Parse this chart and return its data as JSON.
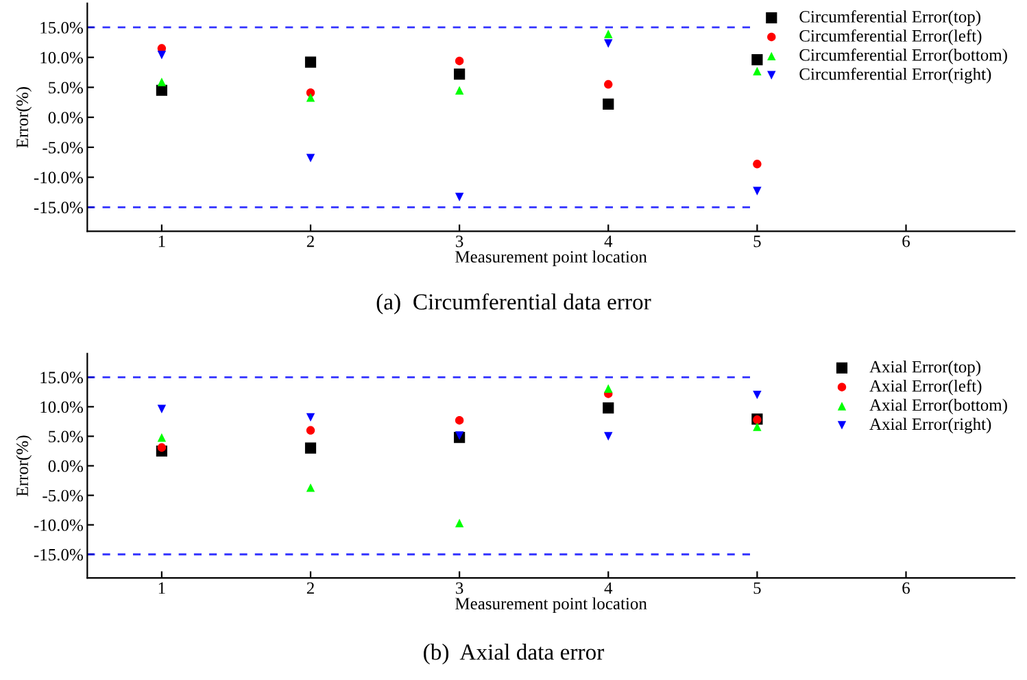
{
  "chart_data": [
    {
      "type": "scatter",
      "xlabel": "Measurement point location",
      "ylabel": "Error(%)",
      "x": [
        1,
        2,
        3,
        4,
        5
      ],
      "series": [
        {
          "name": "Circumferential Error(top)",
          "color": "#000000",
          "marker": "square",
          "values": [
            4.5,
            9.2,
            7.2,
            2.2,
            9.6
          ]
        },
        {
          "name": "Circumferential Error(left)",
          "color": "#ff0000",
          "marker": "circle",
          "values": [
            11.5,
            4.1,
            9.4,
            5.5,
            -7.8
          ]
        },
        {
          "name": "Circumferential Error(bottom)",
          "color": "#00ff00",
          "marker": "triangle",
          "values": [
            5.9,
            3.3,
            4.5,
            13.9,
            7.7
          ]
        },
        {
          "name": "Circumferential Error(right)",
          "color": "#0000ff",
          "marker": "triangle_down",
          "values": [
            10.4,
            -6.8,
            -13.3,
            12.3,
            -12.3
          ]
        }
      ],
      "xlim": [
        0.5,
        6.73
      ],
      "xticks": [
        1,
        2,
        3,
        4,
        5,
        6
      ],
      "ylim": [
        -19,
        19
      ],
      "yticks": [
        {
          "value": -15,
          "label": "-15.0%"
        },
        {
          "value": -10,
          "label": "-10.0%"
        },
        {
          "value": -5,
          "label": "-5.0%"
        },
        {
          "value": 0,
          "label": "0.0%"
        },
        {
          "value": 5,
          "label": "5.0%"
        },
        {
          "value": 10,
          "label": "10.0%"
        },
        {
          "value": 15,
          "label": "15.0%"
        }
      ],
      "ref_lines": [
        {
          "axis": "y",
          "value": 15,
          "color": "#0000ff",
          "line_style": "dashed"
        },
        {
          "axis": "y",
          "value": -15,
          "color": "#0000ff",
          "line_style": "dashed"
        }
      ],
      "annotations": [
        "(a)  Circumferential data error"
      ],
      "legend": "top right",
      "grid": false
    },
    {
      "type": "scatter",
      "xlabel": "Measurement point location",
      "ylabel": "Error(%)",
      "x": [
        1,
        2,
        3,
        4,
        5
      ],
      "series": [
        {
          "name": "Axial Error(top)",
          "color": "#000000",
          "marker": "square",
          "values": [
            2.5,
            3.0,
            4.8,
            9.8,
            7.9
          ]
        },
        {
          "name": "Axial Error(left)",
          "color": "#ff0000",
          "marker": "circle",
          "values": [
            3.1,
            6.0,
            7.7,
            12.2,
            7.8
          ]
        },
        {
          "name": "Axial Error(bottom)",
          "color": "#00ff00",
          "marker": "triangle",
          "values": [
            4.8,
            -3.7,
            -9.7,
            13.1,
            6.6
          ]
        },
        {
          "name": "Axial Error(right)",
          "color": "#0000ff",
          "marker": "triangle_down",
          "values": [
            9.6,
            8.2,
            5.1,
            5.0,
            12.0
          ]
        }
      ],
      "xlim": [
        0.5,
        6.73
      ],
      "xticks": [
        1,
        2,
        3,
        4,
        5,
        6
      ],
      "ylim": [
        -19,
        19
      ],
      "yticks": [
        {
          "value": -15,
          "label": "-15.0%"
        },
        {
          "value": -10,
          "label": "-10.0%"
        },
        {
          "value": -5,
          "label": "-5.0%"
        },
        {
          "value": 0,
          "label": "0.0%"
        },
        {
          "value": 5,
          "label": "5.0%"
        },
        {
          "value": 10,
          "label": "10.0%"
        },
        {
          "value": 15,
          "label": "15.0%"
        }
      ],
      "ref_lines": [
        {
          "axis": "y",
          "value": 15,
          "color": "#0000ff",
          "line_style": "dashed"
        },
        {
          "axis": "y",
          "value": -15,
          "color": "#0000ff",
          "line_style": "dashed"
        }
      ],
      "annotations": [
        "(b)  Axial data error"
      ],
      "legend": "top right",
      "grid": false
    }
  ]
}
